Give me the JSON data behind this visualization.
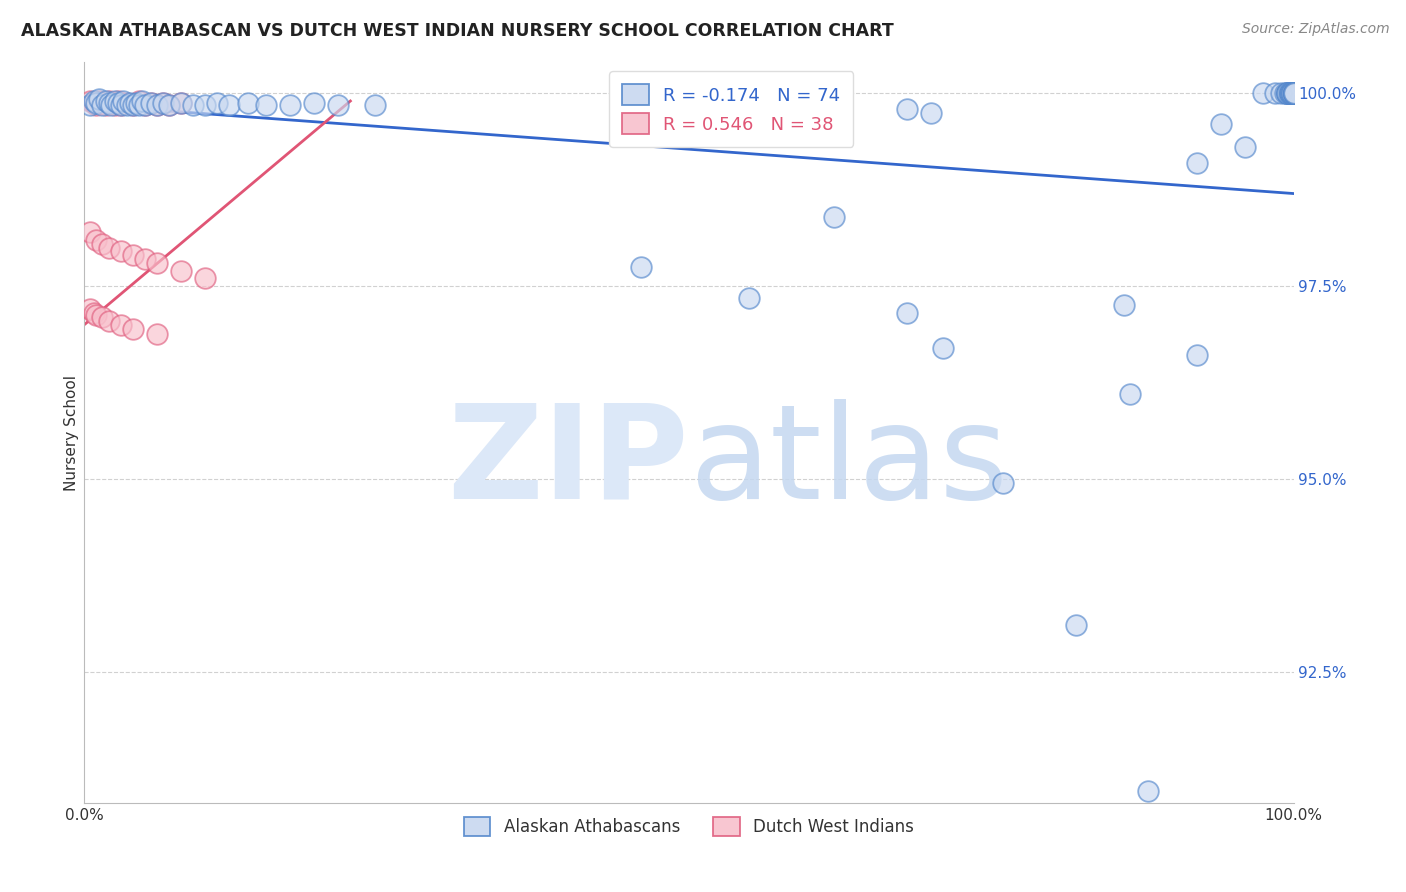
{
  "title": "ALASKAN ATHABASCAN VS DUTCH WEST INDIAN NURSERY SCHOOL CORRELATION CHART",
  "source": "Source: ZipAtlas.com",
  "ylabel": "Nursery School",
  "xlim": [
    0.0,
    1.0
  ],
  "ylim": [
    0.908,
    1.004
  ],
  "yticks": [
    0.925,
    0.95,
    0.975,
    1.0
  ],
  "blue_label": "Alaskan Athabascans",
  "pink_label": "Dutch West Indians",
  "blue_R": -0.174,
  "blue_N": 74,
  "pink_R": 0.546,
  "pink_N": 38,
  "blue_face": "#c8d8f0",
  "blue_edge": "#5588cc",
  "pink_face": "#f8c0cc",
  "pink_edge": "#e06080",
  "blue_line": "#3366cc",
  "pink_line": "#e05575",
  "blue_x": [
    0.005,
    0.008,
    0.01,
    0.012,
    0.015,
    0.018,
    0.02,
    0.022,
    0.025,
    0.028,
    0.03,
    0.032,
    0.035,
    0.038,
    0.04,
    0.043,
    0.045,
    0.048,
    0.05,
    0.055,
    0.06,
    0.065,
    0.07,
    0.08,
    0.09,
    0.1,
    0.11,
    0.12,
    0.135,
    0.15,
    0.17,
    0.19,
    0.21,
    0.24,
    0.46,
    0.55,
    0.62,
    0.68,
    0.71,
    0.76,
    0.82,
    0.865,
    0.88,
    0.92,
    0.68,
    0.7,
    0.86,
    0.92,
    0.94,
    0.96,
    0.975,
    0.985,
    0.99,
    0.993,
    0.995,
    0.995,
    0.995,
    0.995,
    0.996,
    0.997,
    0.997,
    0.998,
    0.998,
    0.999,
    0.999,
    1.0,
    1.0,
    1.0,
    1.0,
    1.0,
    1.0,
    1.0,
    1.0,
    1.0
  ],
  "blue_y": [
    0.9985,
    0.999,
    0.9988,
    0.9992,
    0.9985,
    0.999,
    0.9988,
    0.9985,
    0.999,
    0.9988,
    0.9985,
    0.999,
    0.9985,
    0.9988,
    0.9985,
    0.9988,
    0.9985,
    0.999,
    0.9985,
    0.9988,
    0.9985,
    0.9988,
    0.9985,
    0.9988,
    0.9985,
    0.9985,
    0.9988,
    0.9985,
    0.9988,
    0.9985,
    0.9985,
    0.9988,
    0.9985,
    0.9985,
    0.9775,
    0.9735,
    0.984,
    0.9715,
    0.967,
    0.9495,
    0.931,
    0.961,
    0.9095,
    0.991,
    0.998,
    0.9975,
    0.9725,
    0.966,
    0.996,
    0.993,
    1.0,
    1.0,
    1.0,
    1.0,
    1.0,
    1.0,
    1.0,
    1.0,
    1.0,
    1.0,
    1.0,
    1.0,
    1.0,
    1.0,
    1.0,
    1.0,
    1.0,
    1.0,
    1.0,
    1.0,
    1.0,
    1.0,
    1.0,
    1.0
  ],
  "pink_x": [
    0.005,
    0.008,
    0.01,
    0.012,
    0.015,
    0.018,
    0.02,
    0.022,
    0.025,
    0.028,
    0.03,
    0.035,
    0.04,
    0.045,
    0.05,
    0.055,
    0.06,
    0.065,
    0.07,
    0.08,
    0.005,
    0.01,
    0.015,
    0.02,
    0.03,
    0.04,
    0.05,
    0.06,
    0.08,
    0.1,
    0.005,
    0.008,
    0.01,
    0.015,
    0.02,
    0.03,
    0.04,
    0.06
  ],
  "pink_y": [
    0.999,
    0.9988,
    0.9985,
    0.999,
    0.9988,
    0.9985,
    0.999,
    0.9988,
    0.9985,
    0.999,
    0.9985,
    0.9988,
    0.9985,
    0.999,
    0.9985,
    0.9988,
    0.9985,
    0.9988,
    0.9985,
    0.9988,
    0.982,
    0.981,
    0.9805,
    0.98,
    0.9795,
    0.979,
    0.9785,
    0.978,
    0.977,
    0.976,
    0.972,
    0.9715,
    0.9712,
    0.971,
    0.9705,
    0.97,
    0.9695,
    0.9688
  ],
  "blue_trend": [
    0.9985,
    0.987
  ],
  "pink_trend_x": [
    0.0,
    0.22
  ],
  "pink_trend_y": [
    0.97,
    0.999
  ]
}
